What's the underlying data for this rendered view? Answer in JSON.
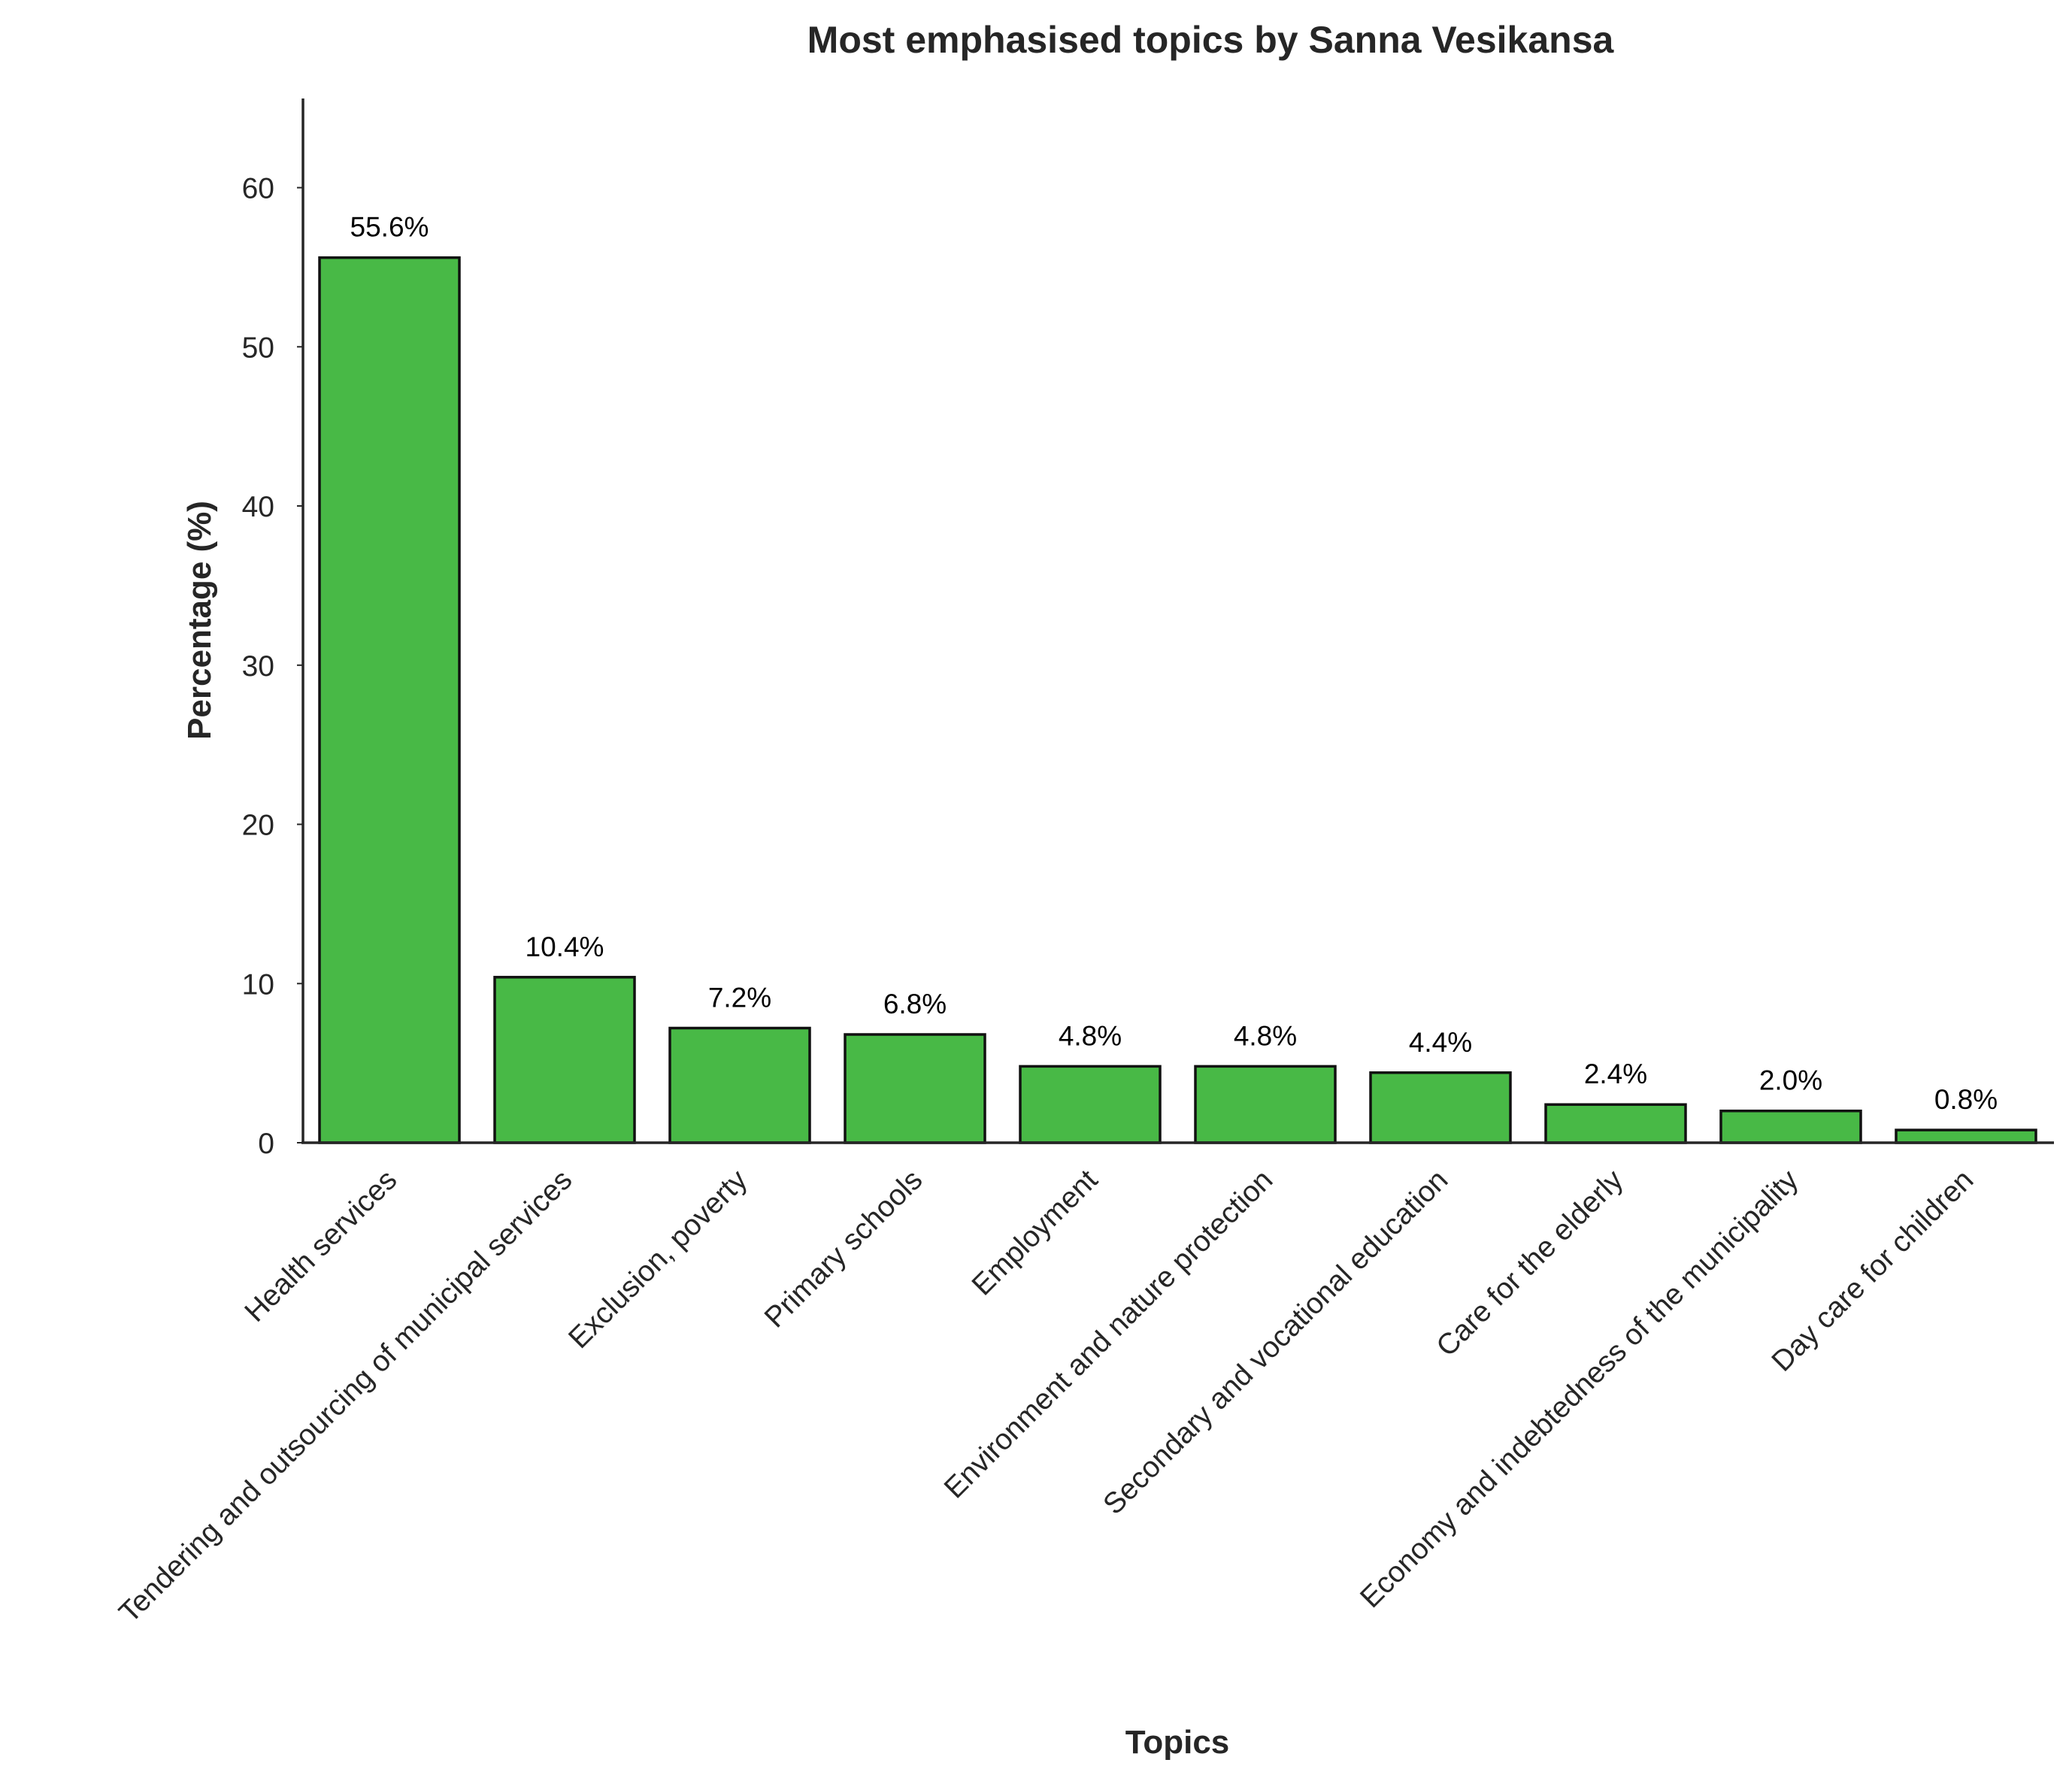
{
  "chart_data": {
    "type": "bar",
    "title": "Most emphasised topics by Sanna Vesikansa",
    "xlabel": "Topics",
    "ylabel": "Percentage (%)",
    "categories": [
      "Health services",
      "Tendering and outsourcing of municipal services",
      "Exclusion, poverty",
      "Primary schools",
      "Employment",
      "Environment and nature protection",
      "Secondary and vocational education",
      "Care for the elderly",
      "Economy and indebtedness of the municipality",
      "Day care for children"
    ],
    "values": [
      55.6,
      10.4,
      7.2,
      6.8,
      4.8,
      4.8,
      4.4,
      2.4,
      2.0,
      0.8
    ],
    "data_labels": [
      "55.6%",
      "10.4%",
      "7.2%",
      "6.8%",
      "4.8%",
      "4.8%",
      "4.4%",
      "2.4%",
      "2.0%",
      "0.8%"
    ],
    "ylim": [
      0,
      65.6
    ],
    "yticks": [
      0,
      10,
      20,
      30,
      40,
      50,
      60
    ],
    "grid": false,
    "legend": "none",
    "bar_color": "#48b946",
    "bar_edge_color": "#111111",
    "axis_color": "#262626"
  }
}
